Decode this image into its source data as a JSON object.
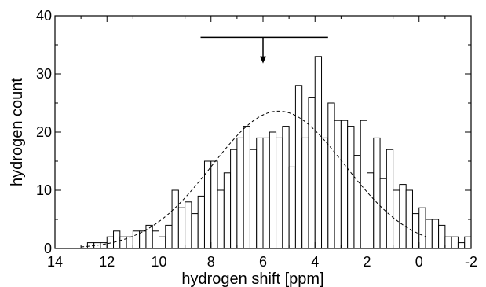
{
  "chart_data": {
    "type": "bar",
    "title": "",
    "xlabel": "hydrogen shift  [ppm]",
    "ylabel": "hydrogen count",
    "xlim": [
      14,
      -2
    ],
    "ylim": [
      0,
      40
    ],
    "x_axis_reversed": true,
    "grid": false,
    "x_ticks": [
      {
        "value": 14,
        "label": "14"
      },
      {
        "value": 12,
        "label": "12"
      },
      {
        "value": 10,
        "label": "10"
      },
      {
        "value": 8,
        "label": "8"
      },
      {
        "value": 6,
        "label": "6"
      },
      {
        "value": 4,
        "label": "4"
      },
      {
        "value": 2,
        "label": "2"
      },
      {
        "value": 0,
        "label": "0"
      },
      {
        "value": -2,
        "label": "-2"
      }
    ],
    "y_ticks": [
      {
        "value": 0,
        "label": "0"
      },
      {
        "value": 10,
        "label": "10"
      },
      {
        "value": 20,
        "label": "20"
      },
      {
        "value": 30,
        "label": "30"
      },
      {
        "value": 40,
        "label": "40"
      }
    ],
    "bin_width": 0.25,
    "bins_high_edge": 13.0,
    "counts": [
      0,
      1,
      1,
      1,
      2,
      3,
      2,
      2,
      3,
      3,
      4,
      3,
      2,
      4,
      10,
      7,
      8,
      6,
      9,
      15,
      15,
      10,
      13,
      17,
      19,
      21,
      17,
      19,
      19,
      20,
      19,
      21,
      14,
      28,
      19,
      26,
      33,
      19,
      25,
      22,
      22,
      21,
      16,
      22,
      13,
      19,
      12,
      17,
      10,
      11,
      10,
      6,
      7,
      5,
      5,
      4,
      2,
      2,
      1,
      2
    ],
    "fit_curve": {
      "style": "dashed",
      "mean": 5.4,
      "sigma": 2.55,
      "amplitude": 23.6
    },
    "annotation": {
      "range_min": 3.5,
      "range_max": 8.4,
      "marker": 6.0,
      "y": 36.3,
      "arrow_tip_y": 31.8
    }
  }
}
